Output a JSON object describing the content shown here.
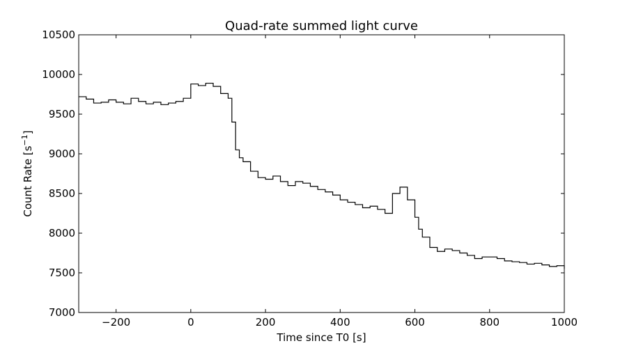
{
  "chart_data": {
    "type": "line",
    "title": "Quad-rate summed light curve",
    "xlabel": "Time since T0 [s]",
    "ylabel_main": "Count Rate [s",
    "ylabel_sup": "−1",
    "ylabel_end": "]",
    "xlim": [
      -300,
      1000
    ],
    "ylim": [
      7000,
      10500
    ],
    "xticks": [
      -200,
      0,
      200,
      400,
      600,
      800,
      1000
    ],
    "xtick_labels": [
      "−200",
      "0",
      "200",
      "400",
      "600",
      "800",
      "1000"
    ],
    "yticks": [
      7000,
      7500,
      8000,
      8500,
      9000,
      9500,
      10000,
      10500
    ],
    "ytick_labels": [
      "7000",
      "7500",
      "8000",
      "8500",
      "9000",
      "9500",
      "10000",
      "10500"
    ],
    "grid": false,
    "line_color": "#000000",
    "series": [
      {
        "x": [
          -300,
          -280,
          -260,
          -240,
          -220,
          -200,
          -180,
          -160,
          -140,
          -120,
          -100,
          -80,
          -60,
          -40,
          -20,
          0,
          20,
          40,
          60,
          80,
          100,
          110,
          120,
          130,
          140,
          160,
          180,
          200,
          220,
          240,
          260,
          280,
          300,
          320,
          340,
          360,
          380,
          400,
          420,
          440,
          460,
          480,
          500,
          520,
          540,
          560,
          580,
          600,
          610,
          620,
          640,
          660,
          680,
          700,
          720,
          740,
          760,
          780,
          800,
          820,
          840,
          860,
          880,
          900,
          920,
          940,
          960,
          980,
          1000
        ],
        "y": [
          9720,
          9690,
          9640,
          9650,
          9680,
          9650,
          9630,
          9700,
          9660,
          9630,
          9650,
          9620,
          9640,
          9660,
          9700,
          9880,
          9860,
          9890,
          9850,
          9760,
          9700,
          9400,
          9050,
          8950,
          8900,
          8780,
          8700,
          8680,
          8720,
          8650,
          8600,
          8650,
          8630,
          8590,
          8550,
          8520,
          8480,
          8420,
          8390,
          8360,
          8320,
          8340,
          8300,
          8250,
          8500,
          8580,
          8420,
          8200,
          8050,
          7950,
          7820,
          7770,
          7800,
          7780,
          7750,
          7720,
          7680,
          7700,
          7700,
          7680,
          7650,
          7640,
          7630,
          7610,
          7620,
          7600,
          7580,
          7590,
          7550
        ]
      }
    ]
  }
}
